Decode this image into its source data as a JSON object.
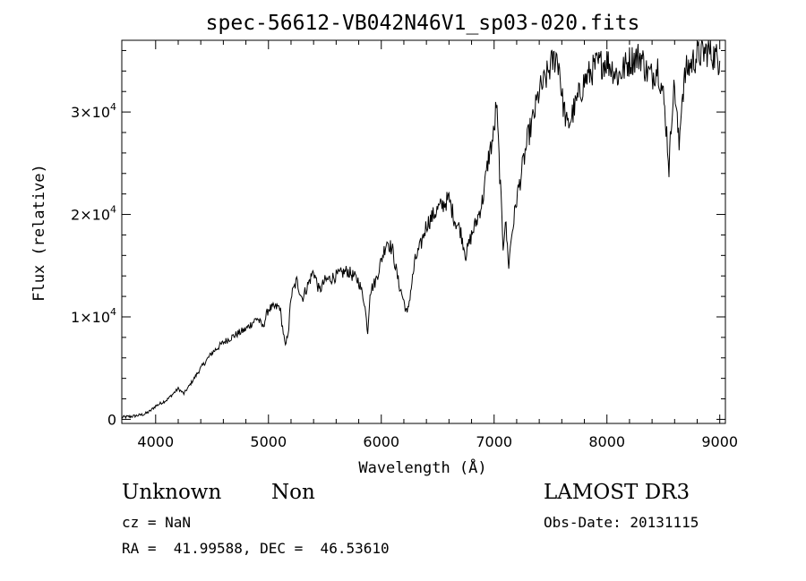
{
  "chart_data": {
    "type": "line",
    "title": "spec-56612-VB042N46V1_sp03-020.fits",
    "xlabel": "Wavelength (Å)",
    "ylabel": "Flux (relative)",
    "xlim": [
      3700,
      9050
    ],
    "ylim": [
      -400,
      37000
    ],
    "xticks": [
      4000,
      5000,
      6000,
      7000,
      8000,
      9000
    ],
    "yticks": [
      {
        "value": 0,
        "mantissa": "0",
        "exp": ""
      },
      {
        "value": 10000,
        "mantissa": "1×10",
        "exp": "4"
      },
      {
        "value": 20000,
        "mantissa": "2×10",
        "exp": "4"
      },
      {
        "value": 30000,
        "mantissa": "3×10",
        "exp": "4"
      }
    ],
    "series": [
      {
        "name": "flux",
        "x": [
          3700,
          3800,
          3900,
          3950,
          4000,
          4100,
          4200,
          4250,
          4300,
          4400,
          4500,
          4600,
          4700,
          4800,
          4900,
          4950,
          5000,
          5100,
          5150,
          5180,
          5200,
          5250,
          5300,
          5400,
          5450,
          5500,
          5600,
          5700,
          5800,
          5850,
          5880,
          5900,
          5950,
          6000,
          6050,
          6100,
          6150,
          6200,
          6230,
          6260,
          6300,
          6350,
          6400,
          6500,
          6550,
          6600,
          6650,
          6700,
          6750,
          6800,
          6850,
          6900,
          6950,
          7000,
          7020,
          7050,
          7080,
          7100,
          7130,
          7150,
          7200,
          7250,
          7300,
          7350,
          7400,
          7450,
          7500,
          7550,
          7580,
          7600,
          7650,
          7700,
          7750,
          7800,
          7900,
          8000,
          8100,
          8200,
          8300,
          8350,
          8400,
          8450,
          8500,
          8530,
          8550,
          8580,
          8600,
          8640,
          8660,
          8700,
          8800,
          8900,
          9000
        ],
        "y": [
          200,
          300,
          500,
          800,
          1300,
          1900,
          3000,
          2500,
          3300,
          5000,
          6500,
          7500,
          8200,
          8800,
          9900,
          9000,
          10800,
          11000,
          7000,
          9000,
          12000,
          13500,
          11800,
          14500,
          12500,
          13500,
          14000,
          14500,
          13500,
          11500,
          8500,
          12500,
          13500,
          15500,
          17500,
          16500,
          13500,
          11500,
          10200,
          12500,
          15500,
          17000,
          19000,
          20500,
          21000,
          21500,
          19500,
          18500,
          16000,
          18000,
          19500,
          21500,
          25500,
          28000,
          31000,
          24000,
          17000,
          19500,
          15000,
          17500,
          21500,
          24500,
          27500,
          29500,
          32000,
          33000,
          34500,
          35500,
          34500,
          31500,
          28500,
          30000,
          31500,
          33000,
          34500,
          35000,
          33500,
          35000,
          35500,
          34000,
          33500,
          34500,
          31500,
          28000,
          24500,
          31000,
          32500,
          26500,
          31000,
          34000,
          35500,
          36000,
          35000
        ]
      }
    ]
  },
  "info": {
    "object_class": "Unknown",
    "subclass": "Non",
    "survey": "LAMOST DR3",
    "cz": "cz = NaN",
    "obs_date": "Obs-Date: 20131115",
    "coords": "RA =  41.99588, DEC =  46.53610"
  }
}
